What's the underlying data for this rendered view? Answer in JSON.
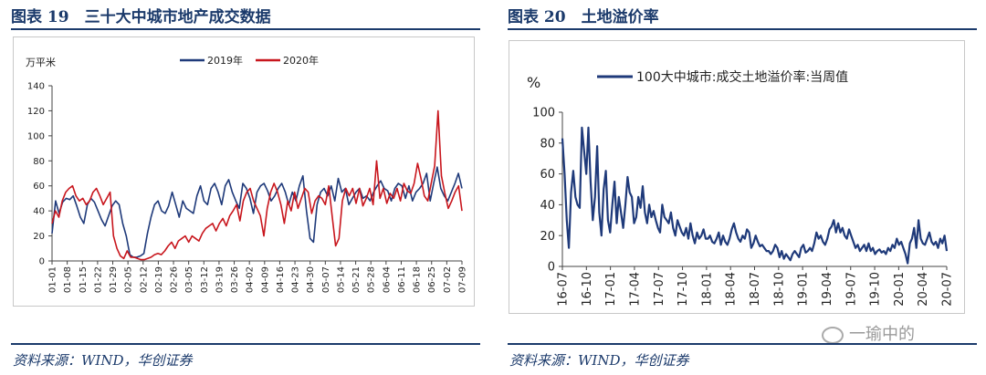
{
  "left": {
    "title": "图表 19　三十大中城市地产成交数据",
    "footer": "资料来源：WIND，华创证券"
  },
  "right": {
    "title": "图表 20　土地溢价率",
    "footer": "资料来源：WIND，华创证券"
  },
  "watermark": "一瑜中的",
  "colors": {
    "navy": "#1b3a6b",
    "series_2019": "#1f3a7a",
    "series_2020": "#c8161d"
  },
  "chart_data": [
    {
      "type": "line",
      "ylabel": "万平米",
      "ylim": [
        0,
        140
      ],
      "yticks": [
        0,
        20,
        40,
        60,
        80,
        100,
        120,
        140
      ],
      "legend_position": "top",
      "x_ticks": [
        "01-01",
        "01-08",
        "01-15",
        "01-22",
        "01-29",
        "02-05",
        "02-12",
        "02-19",
        "02-26",
        "03-05",
        "03-12",
        "03-19",
        "03-26",
        "04-02",
        "04-09",
        "04-16",
        "04-23",
        "04-30",
        "05-07",
        "05-14",
        "05-21",
        "05-28",
        "06-04",
        "06-11",
        "06-18",
        "06-25",
        "07-02",
        "07-09"
      ],
      "series": [
        {
          "name": "2019年",
          "color": "#1f3a7a",
          "values": [
            22,
            48,
            38,
            47,
            50,
            49,
            52,
            44,
            35,
            30,
            45,
            50,
            47,
            40,
            33,
            28,
            36,
            44,
            48,
            45,
            30,
            20,
            5,
            3,
            3,
            4,
            6,
            22,
            35,
            45,
            48,
            40,
            38,
            44,
            55,
            45,
            35,
            48,
            42,
            40,
            38,
            52,
            60,
            48,
            45,
            58,
            62,
            55,
            45,
            60,
            65,
            55,
            48,
            42,
            62,
            58,
            50,
            38,
            55,
            60,
            62,
            56,
            48,
            52,
            58,
            62,
            55,
            45,
            55,
            48,
            60,
            68,
            40,
            18,
            15,
            45,
            55,
            58,
            52,
            60,
            48,
            66,
            55,
            58,
            45,
            50,
            55,
            58,
            50,
            52,
            48,
            55,
            60,
            64,
            58,
            56,
            48,
            58,
            62,
            60,
            50,
            60,
            48,
            55,
            58,
            62,
            70,
            48,
            62,
            75,
            58,
            52,
            48,
            55,
            62,
            70,
            58
          ]
        },
        {
          "name": "2020年",
          "color": "#c8161d",
          "values": [
            30,
            40,
            35,
            48,
            55,
            58,
            60,
            52,
            48,
            50,
            45,
            48,
            55,
            58,
            52,
            45,
            50,
            55,
            20,
            10,
            4,
            2,
            8,
            3,
            3,
            2,
            1,
            1,
            2,
            3,
            5,
            6,
            5,
            8,
            12,
            15,
            10,
            16,
            18,
            20,
            15,
            20,
            18,
            16,
            22,
            26,
            28,
            30,
            24,
            30,
            34,
            28,
            36,
            40,
            45,
            32,
            48,
            55,
            58,
            48,
            42,
            36,
            20,
            42,
            55,
            62,
            55,
            45,
            30,
            48,
            40,
            55,
            42,
            50,
            58,
            55,
            38,
            48,
            52,
            50,
            45,
            60,
            36,
            12,
            18,
            48,
            58,
            52,
            58,
            46,
            58,
            44,
            50,
            58,
            45,
            80,
            50,
            58,
            46,
            54,
            50,
            58,
            48,
            62,
            56,
            54,
            62,
            78,
            66,
            52,
            48,
            62,
            76,
            120,
            68,
            54,
            42,
            48,
            55,
            60,
            40
          ]
        }
      ]
    },
    {
      "type": "line",
      "ylabel": "%",
      "ylim": [
        0,
        100
      ],
      "yticks": [
        0,
        20,
        40,
        60,
        80,
        100
      ],
      "legend_position": "top",
      "x_ticks": [
        "16-07",
        "16-10",
        "17-01",
        "17-04",
        "17-07",
        "17-10",
        "18-01",
        "18-04",
        "18-07",
        "18-10",
        "19-01",
        "19-04",
        "19-07",
        "19-10",
        "20-01",
        "20-04",
        "20-07"
      ],
      "series": [
        {
          "name": "100大中城市:成交土地溢价率:当周值",
          "color": "#1f3a7a",
          "values": [
            83,
            60,
            30,
            12,
            48,
            62,
            45,
            40,
            38,
            90,
            75,
            60,
            90,
            55,
            30,
            45,
            78,
            35,
            20,
            50,
            62,
            30,
            22,
            40,
            55,
            28,
            45,
            35,
            25,
            40,
            58,
            48,
            45,
            28,
            32,
            45,
            38,
            52,
            35,
            28,
            40,
            32,
            36,
            30,
            25,
            22,
            40,
            32,
            30,
            28,
            35,
            25,
            20,
            30,
            26,
            22,
            20,
            25,
            18,
            28,
            20,
            15,
            22,
            18,
            20,
            24,
            18,
            18,
            20,
            16,
            15,
            18,
            22,
            14,
            20,
            16,
            14,
            18,
            24,
            28,
            22,
            18,
            16,
            20,
            18,
            24,
            22,
            12,
            15,
            20,
            16,
            13,
            14,
            12,
            10,
            10,
            8,
            10,
            14,
            12,
            6,
            10,
            5,
            8,
            6,
            4,
            8,
            10,
            8,
            6,
            12,
            14,
            9,
            10,
            12,
            10,
            15,
            22,
            18,
            20,
            16,
            14,
            18,
            24,
            26,
            30,
            22,
            28,
            22,
            25,
            20,
            18,
            24,
            20,
            16,
            12,
            14,
            10,
            12,
            14,
            10,
            15,
            10,
            12,
            8,
            10,
            11,
            9,
            10,
            8,
            12,
            10,
            14,
            12,
            18,
            14,
            16,
            12,
            8,
            2,
            15,
            18,
            25,
            12,
            30,
            18,
            15,
            14,
            18,
            22,
            16,
            14,
            16,
            12,
            18,
            15,
            20,
            10
          ]
        }
      ]
    }
  ]
}
